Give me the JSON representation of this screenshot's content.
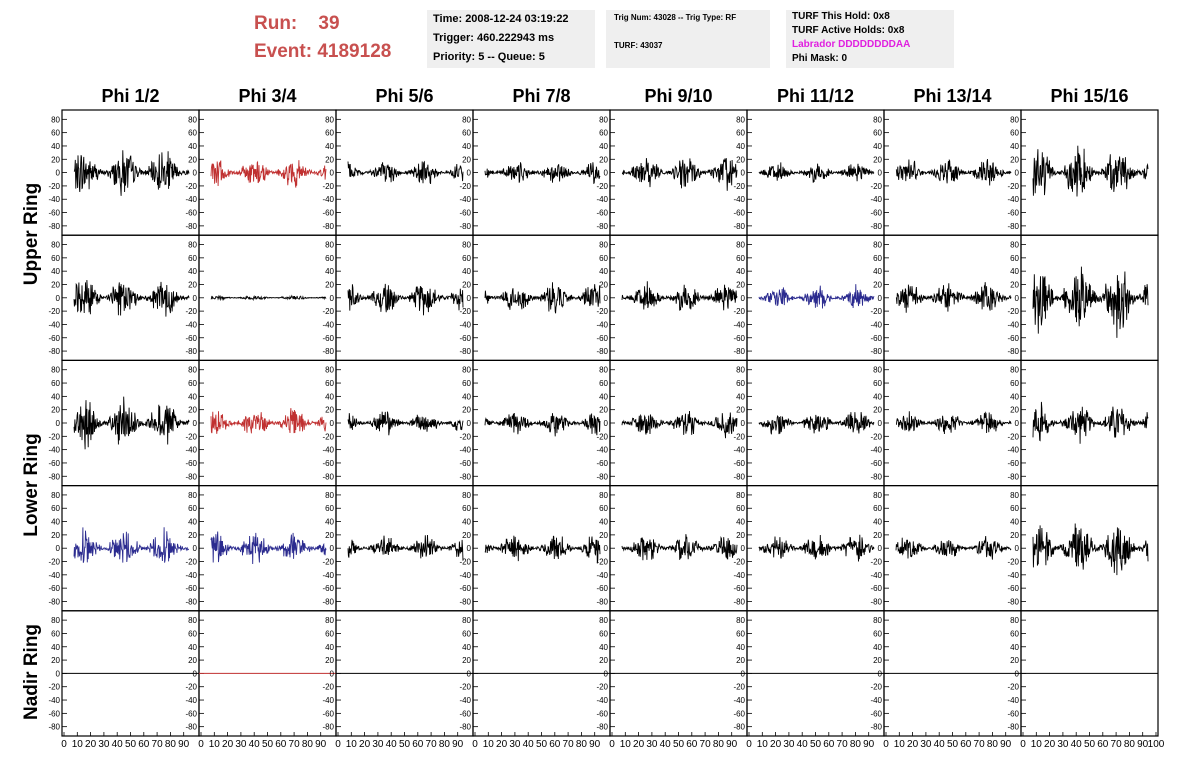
{
  "header": {
    "run_label": "Run:",
    "run_value": "39",
    "event_label": "Event:",
    "event_value": "4189128"
  },
  "time_box": {
    "time": "Time: 2008-12-24 03:19:22",
    "trigger": "Trigger: 460.222943 ms",
    "priority": "Priority: 5 -- Queue: 5"
  },
  "trig_box": {
    "trig": "Trig Num: 43028 -- Trig Type: RF",
    "turf": "TURF: 43037"
  },
  "turf_box": {
    "this_hold": "TURF This Hold: 0x8",
    "active_holds": "TURF Active Holds: 0x8",
    "labrador": "Labrador DDDDDDDDAA",
    "phi_mask": "Phi Mask: 0"
  },
  "columns": [
    "Phi 1/2",
    "Phi 3/4",
    "Phi 5/6",
    "Phi 7/8",
    "Phi 9/10",
    "Phi 11/12",
    "Phi 13/14",
    "Phi 15/16"
  ],
  "rings": [
    {
      "label": "Upper Ring",
      "rows": [
        0,
        1
      ]
    },
    {
      "label": "Lower Ring",
      "rows": [
        2,
        3
      ]
    },
    {
      "label": "Nadir Ring",
      "rows": [
        4
      ]
    }
  ],
  "colors": {
    "normal": "#000000",
    "highlight_red": "#c03030",
    "highlight_blue": "#2b2b8f",
    "title_red": "#c8504f",
    "magenta": "#e020e0"
  },
  "chart_data": {
    "type": "line",
    "title": "",
    "xlabel": "",
    "ylabel": "",
    "xlim": [
      0,
      100
    ],
    "ylim": [
      -85,
      85
    ],
    "yticks": [
      -80,
      -60,
      -40,
      -20,
      0,
      20,
      40,
      60,
      80
    ],
    "xticks": [
      0,
      10,
      20,
      30,
      40,
      50,
      60,
      70,
      80,
      90,
      100
    ],
    "x_tick_labels": [
      "0",
      "10",
      "20",
      "30",
      "40",
      "50",
      "60",
      "70",
      "80",
      "90",
      "100"
    ],
    "note_rows": "5 rows x 8 columns of waveform panels",
    "panels": [
      {
        "row": 0,
        "col": 0,
        "amplitude": 30,
        "color": "normal"
      },
      {
        "row": 0,
        "col": 1,
        "amplitude": 20,
        "color": "highlight_red"
      },
      {
        "row": 0,
        "col": 2,
        "amplitude": 15,
        "color": "normal"
      },
      {
        "row": 0,
        "col": 3,
        "amplitude": 15,
        "color": "normal"
      },
      {
        "row": 0,
        "col": 4,
        "amplitude": 22,
        "color": "normal"
      },
      {
        "row": 0,
        "col": 5,
        "amplitude": 12,
        "color": "normal"
      },
      {
        "row": 0,
        "col": 6,
        "amplitude": 18,
        "color": "normal"
      },
      {
        "row": 0,
        "col": 7,
        "amplitude": 32,
        "color": "normal"
      },
      {
        "row": 1,
        "col": 0,
        "amplitude": 25,
        "color": "normal"
      },
      {
        "row": 1,
        "col": 1,
        "amplitude": 3,
        "color": "normal"
      },
      {
        "row": 1,
        "col": 2,
        "amplitude": 22,
        "color": "normal"
      },
      {
        "row": 1,
        "col": 3,
        "amplitude": 20,
        "color": "normal"
      },
      {
        "row": 1,
        "col": 4,
        "amplitude": 18,
        "color": "normal"
      },
      {
        "row": 1,
        "col": 5,
        "amplitude": 15,
        "color": "highlight_blue"
      },
      {
        "row": 1,
        "col": 6,
        "amplitude": 20,
        "color": "normal"
      },
      {
        "row": 1,
        "col": 7,
        "amplitude": 45,
        "color": "normal"
      },
      {
        "row": 2,
        "col": 0,
        "amplitude": 30,
        "color": "normal"
      },
      {
        "row": 2,
        "col": 1,
        "amplitude": 18,
        "color": "highlight_red"
      },
      {
        "row": 2,
        "col": 2,
        "amplitude": 15,
        "color": "normal"
      },
      {
        "row": 2,
        "col": 3,
        "amplitude": 15,
        "color": "normal"
      },
      {
        "row": 2,
        "col": 4,
        "amplitude": 18,
        "color": "normal"
      },
      {
        "row": 2,
        "col": 5,
        "amplitude": 15,
        "color": "normal"
      },
      {
        "row": 2,
        "col": 6,
        "amplitude": 15,
        "color": "normal"
      },
      {
        "row": 2,
        "col": 7,
        "amplitude": 25,
        "color": "normal"
      },
      {
        "row": 3,
        "col": 0,
        "amplitude": 25,
        "color": "highlight_blue"
      },
      {
        "row": 3,
        "col": 1,
        "amplitude": 20,
        "color": "highlight_blue"
      },
      {
        "row": 3,
        "col": 2,
        "amplitude": 15,
        "color": "normal"
      },
      {
        "row": 3,
        "col": 3,
        "amplitude": 18,
        "color": "normal"
      },
      {
        "row": 3,
        "col": 4,
        "amplitude": 18,
        "color": "normal"
      },
      {
        "row": 3,
        "col": 5,
        "amplitude": 18,
        "color": "normal"
      },
      {
        "row": 3,
        "col": 6,
        "amplitude": 15,
        "color": "normal"
      },
      {
        "row": 3,
        "col": 7,
        "amplitude": 35,
        "color": "normal"
      },
      {
        "row": 4,
        "col": 0,
        "amplitude": 0,
        "color": "normal"
      },
      {
        "row": 4,
        "col": 1,
        "amplitude": 0,
        "color": "highlight_red"
      },
      {
        "row": 4,
        "col": 2,
        "amplitude": 0,
        "color": "normal"
      },
      {
        "row": 4,
        "col": 3,
        "amplitude": 0,
        "color": "normal"
      },
      {
        "row": 4,
        "col": 4,
        "amplitude": 0,
        "color": "normal"
      },
      {
        "row": 4,
        "col": 5,
        "amplitude": 0,
        "color": "normal"
      },
      {
        "row": 4,
        "col": 6,
        "amplitude": 0,
        "color": "normal"
      },
      {
        "row": 4,
        "col": 7,
        "amplitude": 0,
        "color": "normal"
      }
    ]
  }
}
